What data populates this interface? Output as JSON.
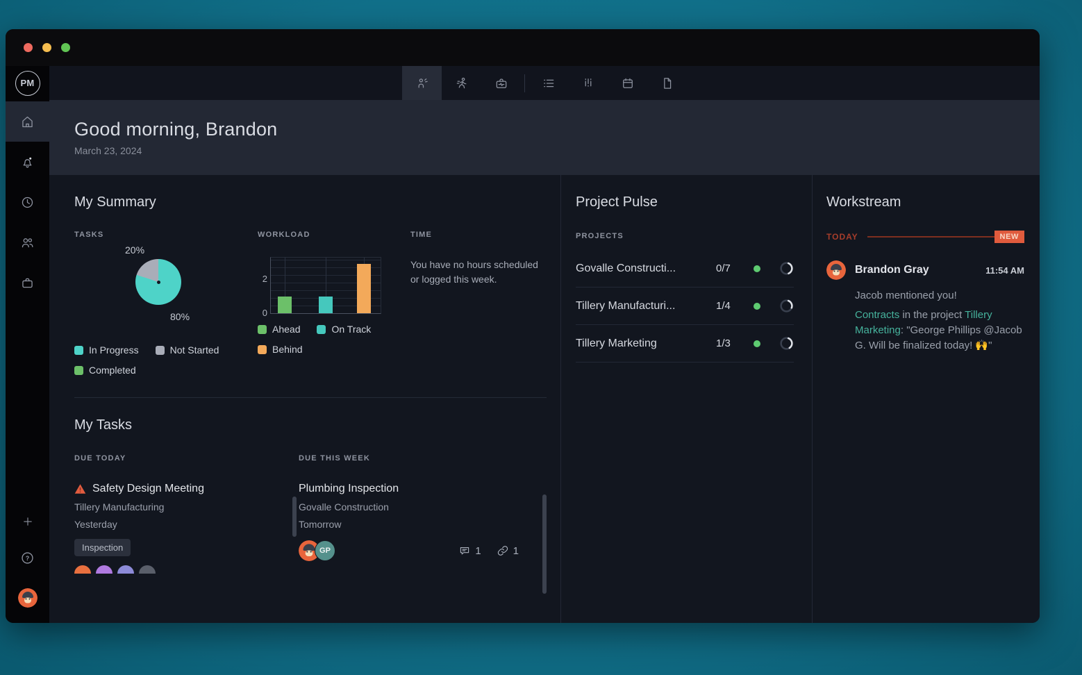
{
  "window": {
    "traffic_lights": [
      "#ee6a5f",
      "#f5bd4f",
      "#61c554"
    ]
  },
  "brand": {
    "logo_text": "PM"
  },
  "sidebar": {
    "icons": [
      "home",
      "bell",
      "clock",
      "team",
      "briefcase",
      "plus",
      "help",
      "avatar"
    ],
    "active": "home",
    "help_glyph": "?",
    "notification_dot": true
  },
  "toolbar": {
    "icons": [
      "my-work",
      "activity",
      "toolbox",
      "list",
      "board",
      "calendar",
      "files"
    ],
    "active": "my-work"
  },
  "header": {
    "greeting": "Good morning, Brandon",
    "date": "March 23, 2024"
  },
  "summary": {
    "title": "My Summary",
    "tasks": {
      "label": "TASKS",
      "pct_small": "20%",
      "pct_large": "80%",
      "chart_data": {
        "type": "pie",
        "slices": [
          {
            "label": "In Progress",
            "value": 80,
            "color": "#4ed3c8"
          },
          {
            "label": "Not Started",
            "value": 20,
            "color": "#a9adb8"
          },
          {
            "label": "Completed",
            "value": 0,
            "color": "#6cc069"
          }
        ]
      },
      "legend": [
        {
          "label": "In Progress",
          "color": "#4ed3c8"
        },
        {
          "label": "Not Started",
          "color": "#a9adb8"
        },
        {
          "label": "Completed",
          "color": "#6cc069"
        }
      ]
    },
    "workload": {
      "label": "WORKLOAD",
      "chart_data": {
        "type": "bar",
        "categories": [
          "Ahead",
          "On Track",
          "Behind"
        ],
        "values": [
          1,
          1,
          3
        ],
        "colors": [
          "#6cc069",
          "#45c8bd",
          "#f3a95a"
        ],
        "ylim": [
          0,
          3.4
        ],
        "yticks": [
          0,
          2
        ],
        "grid": true
      },
      "legend": [
        {
          "label": "Ahead",
          "color": "#6cc069"
        },
        {
          "label": "On Track",
          "color": "#45c8bd"
        },
        {
          "label": "Behind",
          "color": "#f3a95a"
        }
      ]
    },
    "time": {
      "label": "TIME",
      "message": "You have no hours scheduled or logged this week."
    }
  },
  "my_tasks": {
    "title": "My Tasks",
    "due_today": {
      "label": "DUE TODAY",
      "tasks": [
        {
          "title": "Safety Design Meeting",
          "project": "Tillery Manufacturing",
          "due": "Yesterday",
          "tag": "Inspection",
          "overdue": true,
          "avatar_colors": [
            "#e8703f",
            "#b07ae0",
            "#8d8bd8",
            "#5a5f6a"
          ]
        }
      ]
    },
    "due_this_week": {
      "label": "DUE THIS WEEK",
      "tasks": [
        {
          "title": "Plumbing Inspection",
          "project": "Govalle Construction",
          "due": "Tomorrow",
          "assignees": [
            {
              "type": "avatar"
            },
            {
              "type": "initials",
              "text": "GP"
            }
          ],
          "comments": "1",
          "links": "1"
        }
      ]
    }
  },
  "project_pulse": {
    "title": "Project Pulse",
    "label": "PROJECTS",
    "projects": [
      {
        "name": "Govalle Constructi...",
        "progress": "0/7",
        "status_color": "#5ecb71",
        "ring_pct": 38
      },
      {
        "name": "Tillery Manufacturi...",
        "progress": "1/4",
        "status_color": "#5ecb71",
        "ring_pct": 25
      },
      {
        "name": "Tillery Marketing",
        "progress": "1/3",
        "status_color": "#5ecb71",
        "ring_pct": 35
      }
    ]
  },
  "workstream": {
    "title": "Workstream",
    "today_label": "TODAY",
    "new_badge": "NEW",
    "accent_color": "#e05b3d",
    "entry": {
      "author": "Brandon Gray",
      "time": "11:54 AM",
      "line1": "Jacob mentioned you!",
      "link1": "Contracts",
      "mid": " in the project ",
      "link2": "Tillery Marketing",
      "rest": ": \"George Phillips @Jacob G. Will be finalized today! ",
      "emoji": "🙌",
      "close_quote": "\""
    }
  }
}
